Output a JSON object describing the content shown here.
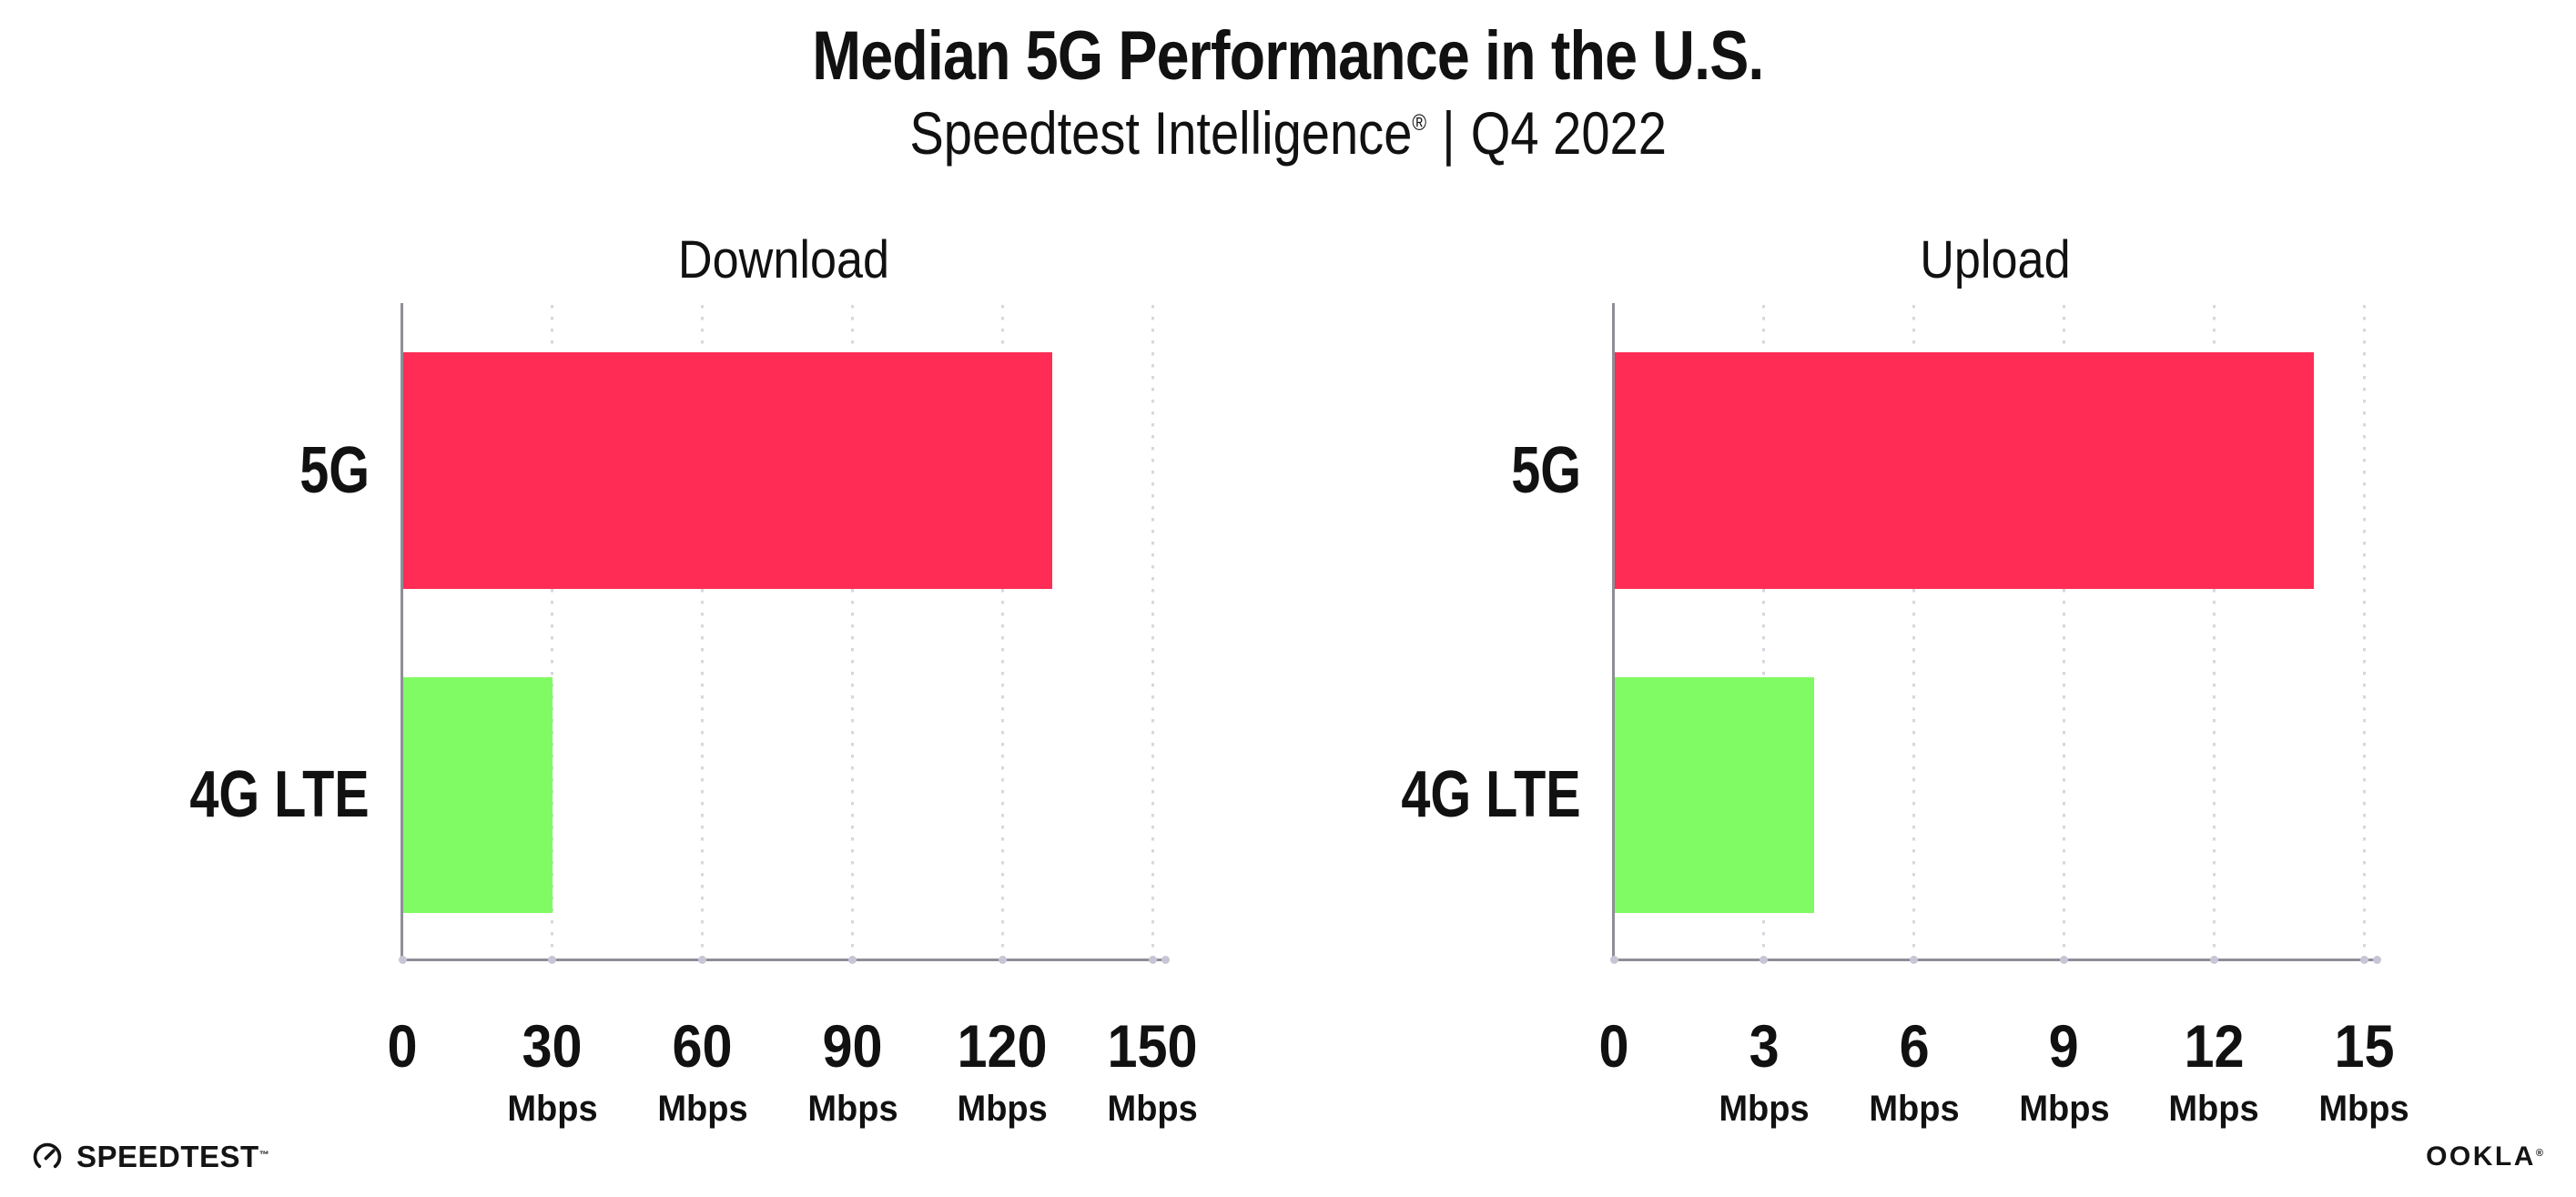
{
  "header": {
    "title": "Median 5G Performance in the U.S.",
    "subtitle": {
      "brand": "Speedtest Intelligence",
      "registered_mark": "®",
      "divider": "|",
      "period": "Q4 2022"
    }
  },
  "chart_data": [
    {
      "type": "bar",
      "orientation": "horizontal",
      "title": "Download",
      "categories": [
        "5G",
        "4G LTE"
      ],
      "values": [
        130,
        30
      ],
      "unit": "Mbps",
      "xlim": [
        0,
        152.5
      ],
      "ticks": [
        0,
        30,
        60,
        90,
        120,
        150
      ],
      "grid": "dotted-vertical",
      "legend": "none",
      "bar_colors": {
        "5G": "#FF2D55",
        "4G LTE": "#80FB63"
      }
    },
    {
      "type": "bar",
      "orientation": "horizontal",
      "title": "Upload",
      "categories": [
        "5G",
        "4G LTE"
      ],
      "values": [
        14,
        4
      ],
      "unit": "Mbps",
      "xlim": [
        0,
        15.25
      ],
      "ticks": [
        0,
        3,
        6,
        9,
        12,
        15
      ],
      "grid": "dotted-vertical",
      "legend": "none",
      "bar_colors": {
        "5G": "#FF2D55",
        "4G LTE": "#80FB63"
      }
    }
  ],
  "footer": {
    "speedtest_wordmark": "SPEEDTEST",
    "speedtest_trademark": "™",
    "ookla_wordmark": "OOKLA",
    "ookla_registered": "®"
  },
  "colors": {
    "bar_5g": "#FF2D55",
    "bar_4g_lte": "#80FB63",
    "axis": "#8E8E97",
    "gridline_dots": "#D7D7E2",
    "axis_tick_dots": "#C6C6D6",
    "text": "#111111",
    "background": "#FFFFFF"
  }
}
